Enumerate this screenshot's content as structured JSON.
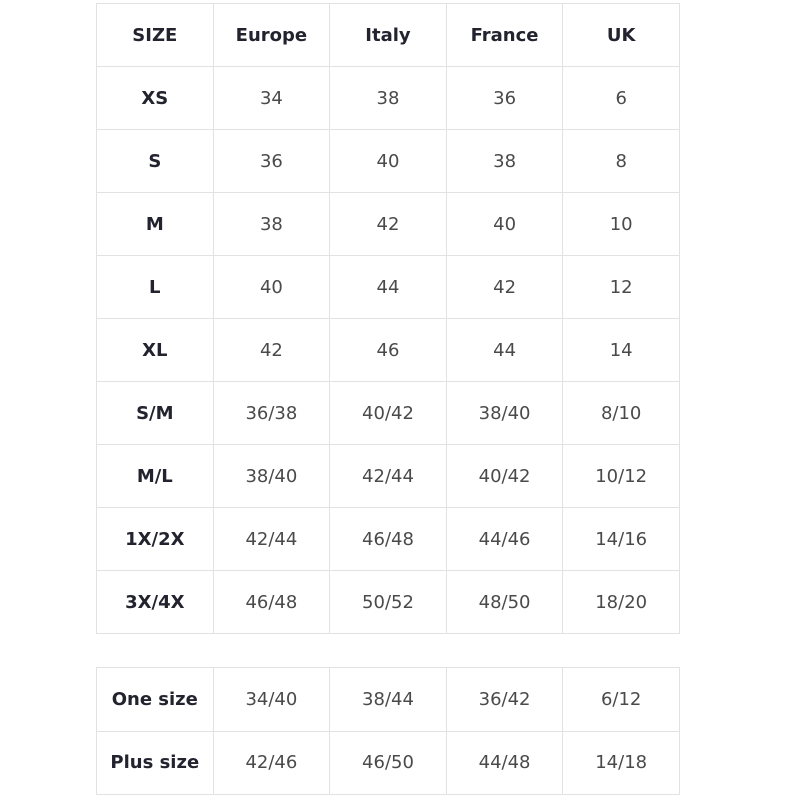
{
  "headers": [
    "SIZE",
    "Europe",
    "Italy",
    "France",
    "UK"
  ],
  "rows": [
    [
      "XS",
      "34",
      "38",
      "36",
      "6"
    ],
    [
      "S",
      "36",
      "40",
      "38",
      "8"
    ],
    [
      "M",
      "38",
      "42",
      "40",
      "10"
    ],
    [
      "L",
      "40",
      "44",
      "42",
      "12"
    ],
    [
      "XL",
      "42",
      "46",
      "44",
      "14"
    ],
    [
      "S/M",
      "36/38",
      "40/42",
      "38/40",
      "8/10"
    ],
    [
      "M/L",
      "38/40",
      "42/44",
      "40/42",
      "10/12"
    ],
    [
      "1X/2X",
      "42/44",
      "46/48",
      "44/46",
      "14/16"
    ],
    [
      "3X/4X",
      "46/48",
      "50/52",
      "48/50",
      "18/20"
    ]
  ],
  "extra_rows": [
    [
      "One size",
      "34/40",
      "38/44",
      "36/42",
      "6/12"
    ],
    [
      "Plus size",
      "42/46",
      "46/50",
      "44/48",
      "14/18"
    ]
  ]
}
